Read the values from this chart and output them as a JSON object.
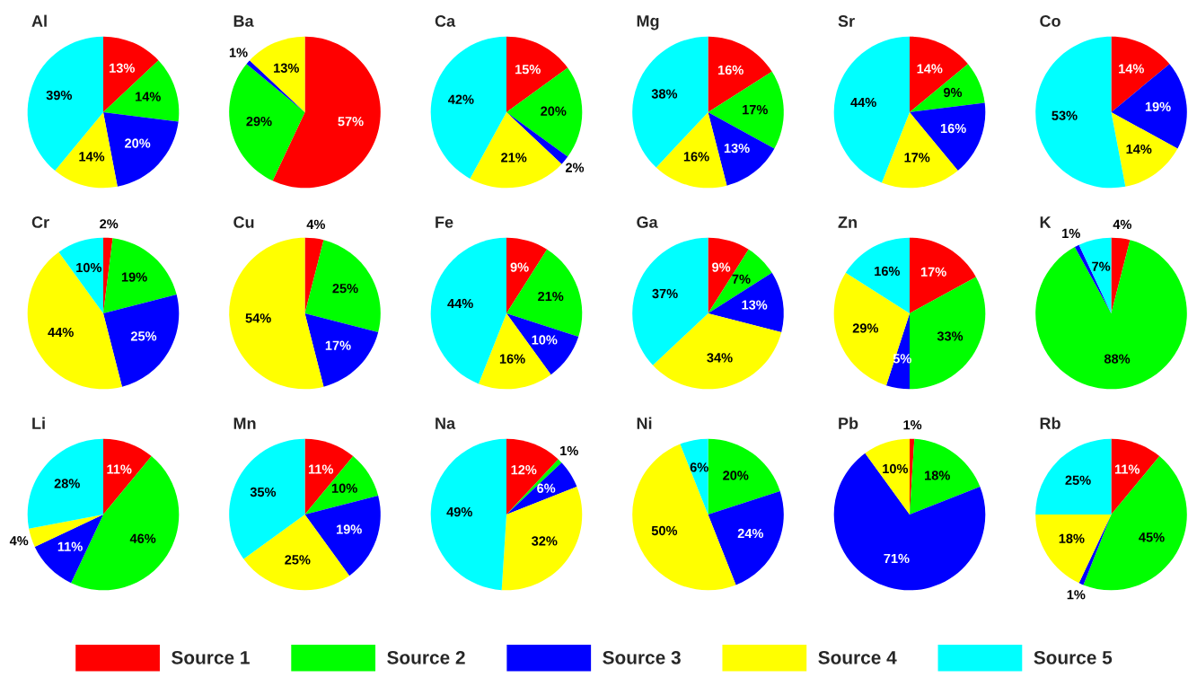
{
  "chart_data": [
    {
      "type": "pie",
      "title": "Al",
      "categories": [
        "Source 1",
        "Source 2",
        "Source 3",
        "Source 4",
        "Source 5"
      ],
      "values": [
        13,
        14,
        20,
        14,
        39
      ],
      "colors": [
        "#ff0000",
        "#00ff00",
        "#0000ff",
        "#ffff00",
        "#00ffff"
      ],
      "value_labels": [
        "13%",
        "14%",
        "20%",
        "14%",
        "39%"
      ],
      "legend": "bottom"
    },
    {
      "type": "pie",
      "title": "Ba",
      "categories": [
        null,
        null,
        null,
        null,
        null
      ],
      "values": [
        57,
        29,
        1,
        13,
        0
      ],
      "colors": [
        "#ff0000",
        "#00ff00",
        "#0000ff",
        "#ffff00",
        "#00ffff"
      ],
      "value_labels": [
        "57%",
        "29%",
        "1%",
        "13%",
        null
      ]
    },
    {
      "type": "pie",
      "title": "Ca",
      "categories": [
        null,
        null,
        null,
        null,
        null
      ],
      "values": [
        15,
        20,
        2,
        21,
        42
      ],
      "colors": [
        "#ff0000",
        "#00ff00",
        "#0000ff",
        "#ffff00",
        "#00ffff"
      ],
      "value_labels": [
        "15%",
        "20%",
        "2%",
        "21%",
        "42%"
      ]
    },
    {
      "type": "pie",
      "title": "Mg",
      "categories": [
        null,
        null,
        null,
        null,
        null
      ],
      "values": [
        16,
        17,
        13,
        16,
        38
      ],
      "colors": [
        "#ff0000",
        "#00ff00",
        "#0000ff",
        "#ffff00",
        "#00ffff"
      ],
      "value_labels": [
        "16%",
        "17%",
        "13%",
        "16%",
        "38%"
      ]
    },
    {
      "type": "pie",
      "title": "Sr",
      "categories": [
        null,
        null,
        null,
        null,
        null
      ],
      "values": [
        14,
        9,
        16,
        17,
        44
      ],
      "colors": [
        "#ff0000",
        "#00ff00",
        "#0000ff",
        "#ffff00",
        "#00ffff"
      ],
      "value_labels": [
        "14%",
        "9%",
        "16%",
        "17%",
        "44%"
      ]
    },
    {
      "type": "pie",
      "title": "Co",
      "categories": [
        null,
        null,
        null,
        null,
        null
      ],
      "values": [
        14,
        0,
        19,
        14,
        53
      ],
      "colors": [
        "#ff0000",
        "#00ff00",
        "#0000ff",
        "#ffff00",
        "#00ffff"
      ],
      "value_labels": [
        "14%",
        null,
        "19%",
        "14%",
        "53%"
      ]
    },
    {
      "type": "pie",
      "title": "Cr",
      "categories": [
        null,
        null,
        null,
        null,
        null
      ],
      "values": [
        2,
        19,
        25,
        44,
        10
      ],
      "colors": [
        "#ff0000",
        "#00ff00",
        "#0000ff",
        "#ffff00",
        "#00ffff"
      ],
      "value_labels": [
        "2%",
        "19%",
        "25%",
        "44%",
        "10%"
      ]
    },
    {
      "type": "pie",
      "title": "Cu",
      "categories": [
        null,
        null,
        null,
        null,
        null
      ],
      "values": [
        4,
        25,
        17,
        54,
        0
      ],
      "colors": [
        "#ff0000",
        "#00ff00",
        "#0000ff",
        "#ffff00",
        "#00ffff"
      ],
      "value_labels": [
        "4%",
        "25%",
        "17%",
        "54%",
        null
      ]
    },
    {
      "type": "pie",
      "title": "Fe",
      "categories": [
        null,
        null,
        null,
        null,
        null
      ],
      "values": [
        9,
        21,
        10,
        16,
        44
      ],
      "colors": [
        "#ff0000",
        "#00ff00",
        "#0000ff",
        "#ffff00",
        "#00ffff"
      ],
      "value_labels": [
        "9%",
        "21%",
        "10%",
        "16%",
        "44%"
      ]
    },
    {
      "type": "pie",
      "title": "Ga",
      "categories": [
        null,
        null,
        null,
        null,
        null
      ],
      "values": [
        9,
        7,
        13,
        34,
        37
      ],
      "colors": [
        "#ff0000",
        "#00ff00",
        "#0000ff",
        "#ffff00",
        "#00ffff"
      ],
      "value_labels": [
        "9%",
        "7%",
        "13%",
        "34%",
        "37%"
      ]
    },
    {
      "type": "pie",
      "title": "Zn",
      "categories": [
        null,
        null,
        null,
        null,
        null
      ],
      "values": [
        17,
        33,
        5,
        29,
        16
      ],
      "colors": [
        "#ff0000",
        "#00ff00",
        "#0000ff",
        "#ffff00",
        "#00ffff"
      ],
      "value_labels": [
        "17%",
        "33%",
        "5%",
        "29%",
        "16%"
      ]
    },
    {
      "type": "pie",
      "title": "K",
      "categories": [
        null,
        null,
        null,
        null,
        null
      ],
      "values": [
        4,
        88,
        1,
        0,
        7
      ],
      "colors": [
        "#ff0000",
        "#00ff00",
        "#0000ff",
        "#ffff00",
        "#00ffff"
      ],
      "value_labels": [
        "4%",
        "88%",
        "1%",
        null,
        "7%"
      ]
    },
    {
      "type": "pie",
      "title": "Li",
      "categories": [
        null,
        null,
        null,
        null,
        null
      ],
      "values": [
        11,
        46,
        11,
        4,
        28
      ],
      "colors": [
        "#ff0000",
        "#00ff00",
        "#0000ff",
        "#ffff00",
        "#00ffff"
      ],
      "value_labels": [
        "11%",
        "46%",
        "11%",
        "4%",
        "28%"
      ]
    },
    {
      "type": "pie",
      "title": "Mn",
      "categories": [
        null,
        null,
        null,
        null,
        null
      ],
      "values": [
        11,
        10,
        19,
        25,
        35
      ],
      "colors": [
        "#ff0000",
        "#00ff00",
        "#0000ff",
        "#ffff00",
        "#00ffff"
      ],
      "value_labels": [
        "11%",
        "10%",
        "19%",
        "25%",
        "35%"
      ]
    },
    {
      "type": "pie",
      "title": "Na",
      "categories": [
        null,
        null,
        null,
        null,
        null
      ],
      "values": [
        12,
        1,
        6,
        32,
        49
      ],
      "colors": [
        "#ff0000",
        "#00ff00",
        "#0000ff",
        "#ffff00",
        "#00ffff"
      ],
      "value_labels": [
        "12%",
        "1%",
        "6%",
        "32%",
        "49%"
      ]
    },
    {
      "type": "pie",
      "title": "Ni",
      "categories": [
        null,
        null,
        null,
        null,
        null
      ],
      "values": [
        0,
        20,
        24,
        50,
        6
      ],
      "colors": [
        "#ff0000",
        "#00ff00",
        "#0000ff",
        "#ffff00",
        "#00ffff"
      ],
      "value_labels": [
        null,
        "20%",
        "24%",
        "50%",
        "6%"
      ]
    },
    {
      "type": "pie",
      "title": "Pb",
      "categories": [
        null,
        null,
        null,
        null,
        null
      ],
      "values": [
        1,
        18,
        71,
        10,
        0
      ],
      "colors": [
        "#ff0000",
        "#00ff00",
        "#0000ff",
        "#ffff00",
        "#00ffff"
      ],
      "value_labels": [
        "1%",
        "18%",
        "71%",
        "10%",
        null
      ]
    },
    {
      "type": "pie",
      "title": "Rb",
      "categories": [
        null,
        null,
        null,
        null,
        null
      ],
      "values": [
        11,
        45,
        1,
        18,
        25
      ],
      "colors": [
        "#ff0000",
        "#00ff00",
        "#0000ff",
        "#ffff00",
        "#00ffff"
      ],
      "value_labels": [
        "11%",
        "45%",
        "1%",
        "18%",
        "25%"
      ]
    }
  ]
}
